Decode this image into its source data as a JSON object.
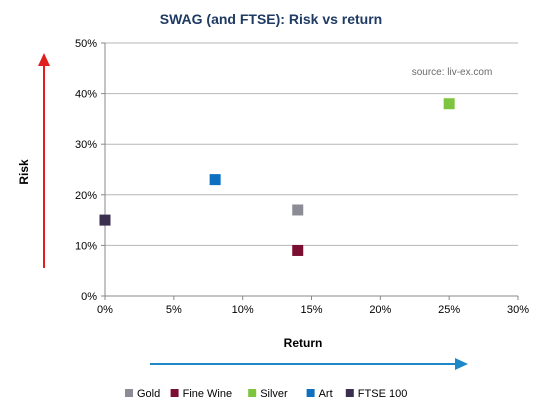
{
  "chart_data": {
    "type": "scatter",
    "title": "SWAG (and FTSE): Risk vs return",
    "xlabel": "Return",
    "ylabel": "Risk",
    "annotation": "source: liv-ex.com",
    "xlim": [
      0,
      30
    ],
    "ylim": [
      0,
      50
    ],
    "x_ticks": [
      "0%",
      "5%",
      "10%",
      "15%",
      "20%",
      "25%",
      "30%"
    ],
    "y_ticks": [
      "0%",
      "10%",
      "20%",
      "30%",
      "40%",
      "50%"
    ],
    "grid": true,
    "legend_position": "bottom",
    "series": [
      {
        "name": "Gold",
        "color": "#8c8c96",
        "x": 14,
        "y": 17
      },
      {
        "name": "Fine Wine",
        "color": "#7a0f32",
        "x": 14,
        "y": 9
      },
      {
        "name": "Silver",
        "color": "#7dc53e",
        "x": 25,
        "y": 38
      },
      {
        "name": "Art",
        "color": "#1070c0",
        "x": 8,
        "y": 23
      },
      {
        "name": "FTSE 100",
        "color": "#3b2f4f",
        "x": 0,
        "y": 15
      }
    ],
    "colors": {
      "title": "#1f3b63",
      "risk_arrow": "#e0201f",
      "return_arrow": "#1d88c8",
      "grid": "#b7b7b7"
    }
  }
}
